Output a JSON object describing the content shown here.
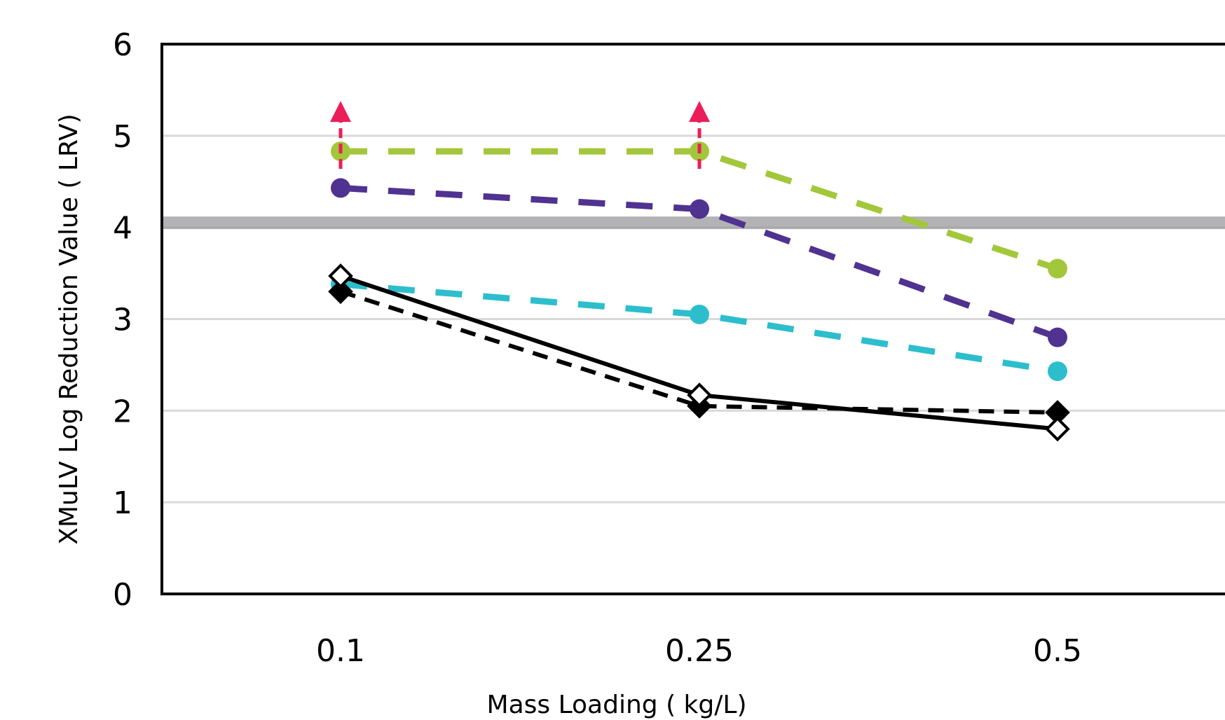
{
  "chart_data": {
    "type": "line",
    "title": "",
    "xlabel": "Mass Loading ( kg/L)",
    "ylabel": "XMuLV Log Reduction Value ( LRV)",
    "categories": [
      "0.1",
      "0.25",
      "0.5"
    ],
    "ylim": [
      0,
      6
    ],
    "yticks": [
      0,
      1,
      2,
      3,
      4,
      5,
      6
    ],
    "grid": true,
    "reference_line": {
      "y": 4.05,
      "color": "#9a9a9c"
    },
    "series": [
      {
        "values": [
          4.83,
          4.83,
          3.55
        ],
        "color": "#a2c73b",
        "dashed": true,
        "marker": "circle",
        "limit_arrows": [
          true,
          true,
          false
        ]
      },
      {
        "values": [
          4.43,
          4.2,
          2.8
        ],
        "color": "#503291",
        "dashed": true,
        "marker": "circle",
        "limit_arrows": [
          false,
          false,
          false
        ]
      },
      {
        "values": [
          3.38,
          3.05,
          2.43
        ],
        "color": "#2dbecd",
        "dashed": true,
        "marker": "circle",
        "limit_arrows": [
          false,
          false,
          false
        ]
      },
      {
        "values": [
          3.3,
          2.05,
          1.98
        ],
        "color": "#000000",
        "dashed": true,
        "marker": "diamond-filled",
        "limit_arrows": [
          false,
          false,
          false
        ]
      },
      {
        "values": [
          3.47,
          2.17,
          1.8
        ],
        "color": "#000000",
        "dashed": false,
        "marker": "diamond-open",
        "limit_arrows": [
          false,
          false,
          false
        ]
      }
    ],
    "arrow_color": "#eb1e5a"
  }
}
